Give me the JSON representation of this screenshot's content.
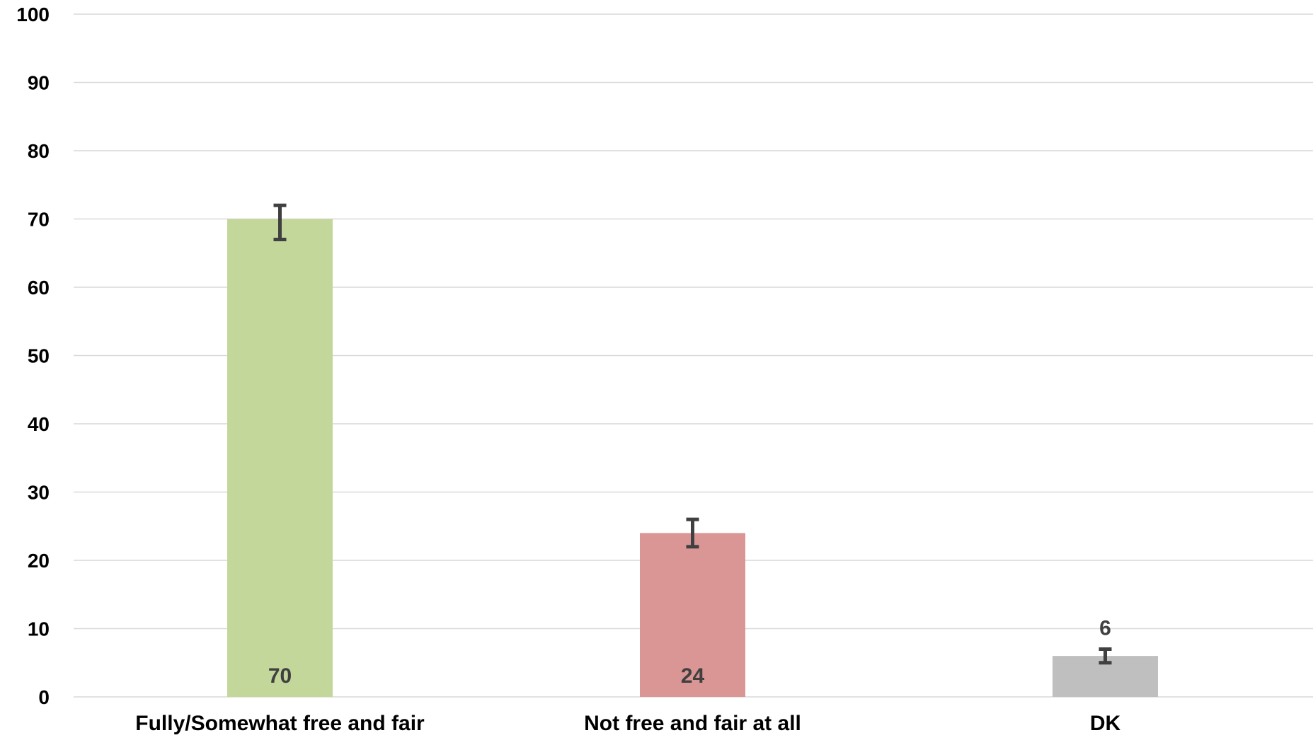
{
  "chart_data": {
    "type": "bar",
    "title": "",
    "xlabel": "",
    "ylabel": "",
    "categories": [
      "Fully/Somewhat free and fair",
      "Not free and fair at all",
      "DK"
    ],
    "values": [
      70,
      24,
      6
    ],
    "data_labels": [
      "70",
      "24",
      "6"
    ],
    "error_bars": [
      {
        "low": 67,
        "high": 72
      },
      {
        "low": 22,
        "high": 26
      },
      {
        "low": 5,
        "high": 7
      }
    ],
    "ylim": [
      0,
      100
    ],
    "yticks": [
      0,
      10,
      20,
      30,
      40,
      50,
      60,
      70,
      80,
      90,
      100
    ],
    "colors": [
      "#c4d79b",
      "#da9694",
      "#bfbfbf"
    ],
    "gridlines": true,
    "legend": "none",
    "data_label_positions": [
      "inside-base",
      "inside-base",
      "above"
    ]
  }
}
